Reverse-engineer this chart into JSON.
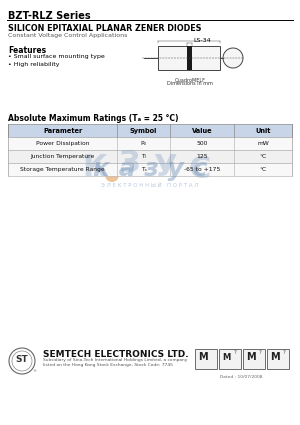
{
  "title": "BZT-RLZ Series",
  "subtitle": "SILICON EPITAXIAL PLANAR ZENER DIODES",
  "subtitle2": "Constant Voltage Control Applications",
  "features_title": "Features",
  "features": [
    "• Small surface mounting type",
    "• High reliability"
  ],
  "package": "LS-34",
  "table_title": "Absolute Maximum Ratings (Tₐ = 25 °C)",
  "table_headers": [
    "Parameter",
    "Symbol",
    "Value",
    "Unit"
  ],
  "table_rows": [
    [
      "Power Dissipation",
      "P₀",
      "500",
      "mW"
    ],
    [
      "Junction Temperature",
      "Tₗ",
      "125",
      "°C"
    ],
    [
      "Storage Temperature Range",
      "Tₛ",
      "-65 to +175",
      "°C"
    ]
  ],
  "company": "SEMTECH ELECTRONICS LTD.",
  "company_sub1": "Subsidiary of Sino-Tech International Holdings Limited, a company",
  "company_sub2": "listed on the Hong Kong Stock Exchange, Stock Code: 7745",
  "date_label": "Dated : 10/07/2008",
  "bg_color": "#ffffff",
  "header_bg": "#c8d4e8",
  "watermark_blue": "#7090b8",
  "watermark_orange": "#e09040",
  "title_color": "#000000",
  "line_color": "#000000"
}
